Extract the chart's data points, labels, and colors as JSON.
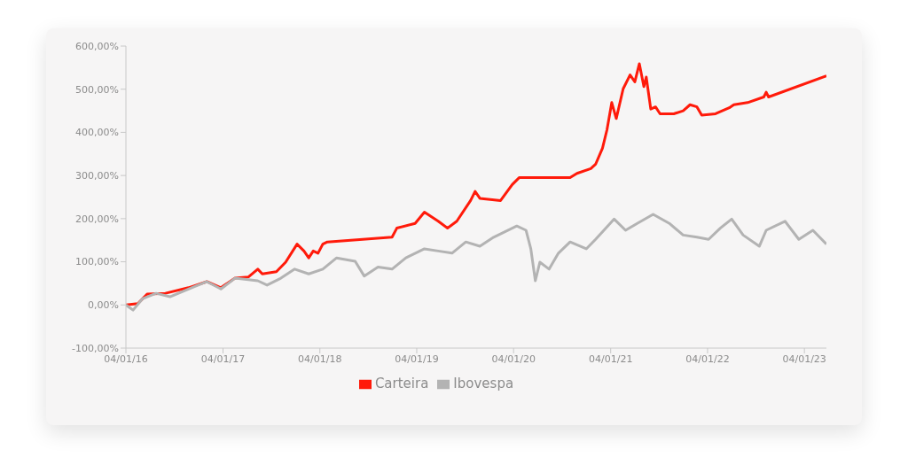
{
  "chart_data": {
    "type": "line",
    "legend": "bottom",
    "grid": false,
    "marker": "none",
    "line_style": "solid",
    "xlim": [
      "2016-01-04",
      "2023-03-28"
    ],
    "xticks": [
      {
        "value": "2016-01-04",
        "label": "04/01/16"
      },
      {
        "value": "2017-01-04",
        "label": "04/01/17"
      },
      {
        "value": "2018-01-04",
        "label": "04/01/18"
      },
      {
        "value": "2019-01-04",
        "label": "04/01/19"
      },
      {
        "value": "2020-01-04",
        "label": "04/01/20"
      },
      {
        "value": "2021-01-04",
        "label": "04/01/21"
      },
      {
        "value": "2022-01-04",
        "label": "04/01/22"
      },
      {
        "value": "2023-01-04",
        "label": "04/01/23"
      }
    ],
    "ylim": [
      -100,
      600
    ],
    "yticks": [
      {
        "value": -100,
        "label": "-100,00%"
      },
      {
        "value": 0,
        "label": "0,00%"
      },
      {
        "value": 100,
        "label": "100,00%"
      },
      {
        "value": 200,
        "label": "200,00%"
      },
      {
        "value": 300,
        "label": "300,00%"
      },
      {
        "value": 400,
        "label": "400,00%"
      },
      {
        "value": 500,
        "label": "500,00%"
      },
      {
        "value": 600,
        "label": "600,00%"
      }
    ],
    "series": [
      {
        "name": "Carteira",
        "color": "#ff1a0a",
        "x": [
          "2016-01-04",
          "2016-02-18",
          "2016-03-24",
          "2016-06-01",
          "2016-08-27",
          "2016-11-04",
          "2016-12-27",
          "2017-02-18",
          "2017-04-10",
          "2017-05-15",
          "2017-06-01",
          "2017-07-24",
          "2017-08-28",
          "2017-10-10",
          "2017-11-05",
          "2017-11-23",
          "2017-12-10",
          "2017-12-28",
          "2018-01-15",
          "2018-02-01",
          "2018-10-03",
          "2018-10-21",
          "2018-12-29",
          "2019-02-02",
          "2019-03-26",
          "2019-04-30",
          "2019-06-04",
          "2019-07-26",
          "2019-08-12",
          "2019-08-30",
          "2019-11-16",
          "2019-12-30",
          "2020-01-25",
          "2020-08-04",
          "2020-08-30",
          "2020-10-21",
          "2020-11-08",
          "2020-12-04",
          "2020-12-21",
          "2021-01-08",
          "2021-01-25",
          "2021-02-20",
          "2021-03-18",
          "2021-04-05",
          "2021-04-22",
          "2021-05-09",
          "2021-05-18",
          "2021-06-04",
          "2021-06-22",
          "2021-07-09",
          "2021-08-30",
          "2021-10-04",
          "2021-10-30",
          "2021-11-25",
          "2021-12-13",
          "2022-02-03",
          "2022-03-27",
          "2022-04-13",
          "2022-06-04",
          "2022-08-04",
          "2022-08-13",
          "2022-08-22",
          "2023-03-28"
        ],
        "values": [
          0,
          3,
          25,
          27,
          40,
          54,
          40,
          62,
          65,
          83,
          72,
          77,
          99,
          141,
          125,
          109,
          125,
          120,
          141,
          146,
          157,
          178,
          189,
          215,
          194,
          178,
          194,
          242,
          263,
          247,
          242,
          279,
          295,
          295,
          305,
          316,
          326,
          363,
          406,
          469,
          432,
          501,
          533,
          517,
          559,
          506,
          528,
          454,
          459,
          443,
          443,
          450,
          464,
          459,
          440,
          443,
          457,
          464,
          469,
          482,
          493,
          482,
          531
        ]
      },
      {
        "name": "Ibovespa",
        "color": "#b3b3b3",
        "x": [
          "2016-01-04",
          "2016-01-31",
          "2016-03-06",
          "2016-04-27",
          "2016-06-18",
          "2016-08-27",
          "2016-11-04",
          "2016-12-27",
          "2017-02-18",
          "2017-05-15",
          "2017-06-19",
          "2017-08-10",
          "2017-10-01",
          "2017-11-23",
          "2018-01-15",
          "2018-03-08",
          "2018-05-17",
          "2018-06-20",
          "2018-08-11",
          "2018-10-03",
          "2018-11-24",
          "2019-02-02",
          "2019-03-26",
          "2019-05-17",
          "2019-07-08",
          "2019-08-30",
          "2019-10-21",
          "2020-01-16",
          "2020-02-20",
          "2020-03-09",
          "2020-03-26",
          "2020-04-12",
          "2020-05-17",
          "2020-06-21",
          "2020-08-04",
          "2020-10-04",
          "2020-11-08",
          "2021-01-17",
          "2021-03-01",
          "2021-04-14",
          "2021-06-13",
          "2021-08-13",
          "2021-10-04",
          "2021-11-25",
          "2022-01-08",
          "2022-02-21",
          "2022-04-05",
          "2022-05-18",
          "2022-07-18",
          "2022-08-13",
          "2022-10-23",
          "2022-12-14",
          "2023-02-05",
          "2023-03-28"
        ],
        "values": [
          0,
          -12,
          14,
          27,
          19,
          37,
          54,
          37,
          62,
          56,
          46,
          62,
          83,
          72,
          83,
          109,
          101,
          67,
          88,
          83,
          109,
          130,
          125,
          120,
          146,
          136,
          157,
          183,
          173,
          130,
          56,
          99,
          83,
          120,
          146,
          130,
          152,
          199,
          173,
          189,
          210,
          189,
          162,
          157,
          152,
          178,
          199,
          162,
          136,
          173,
          194,
          152,
          173,
          141
        ]
      }
    ]
  }
}
